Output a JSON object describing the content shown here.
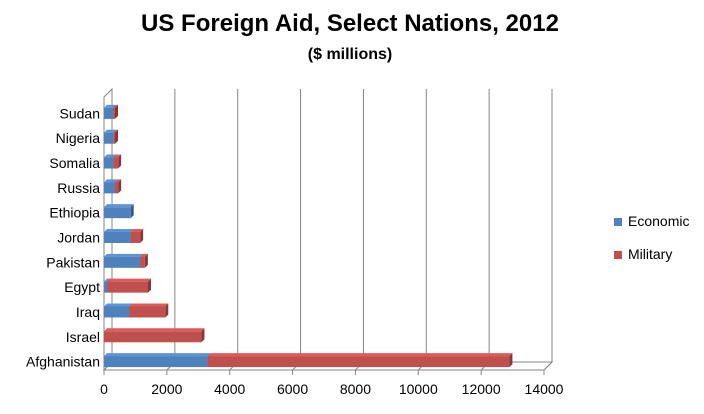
{
  "chart_data": {
    "type": "bar",
    "orientation": "horizontal",
    "stacked": true,
    "style": "3d",
    "title": "US Foreign Aid, Select Nations, 2012",
    "subtitle": "($ millions)",
    "xlabel": "",
    "ylabel": "",
    "xlim": [
      0,
      14000
    ],
    "x_ticks": [
      "0",
      "2000",
      "4000",
      "6000",
      "8000",
      "10000",
      "12000",
      "14000"
    ],
    "grid": "vertical",
    "legend_position": "right",
    "categories": [
      "Afghanistan",
      "Israel",
      "Iraq",
      "Egypt",
      "Pakistan",
      "Jordan",
      "Ethiopia",
      "Russia",
      "Somalia",
      "Nigeria",
      "Sudan"
    ],
    "series": [
      {
        "name": "Economic",
        "color": "#4f81bd",
        "values": [
          3300,
          0,
          800,
          100,
          1150,
          850,
          850,
          350,
          300,
          300,
          300
        ]
      },
      {
        "name": "Military",
        "color": "#c0504d",
        "values": [
          9600,
          3100,
          1150,
          1300,
          150,
          300,
          0,
          100,
          150,
          50,
          50
        ]
      }
    ]
  }
}
